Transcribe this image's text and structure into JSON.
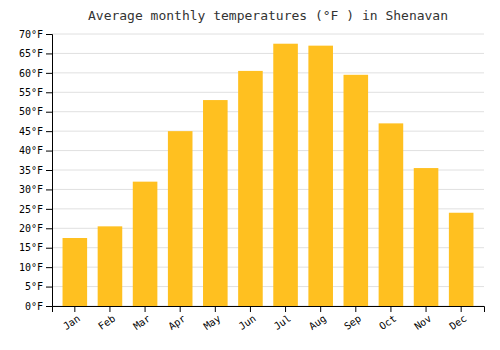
{
  "chart_data": {
    "type": "bar",
    "title": "Average monthly temperatures (°F ) in Shenavan",
    "categories": [
      "Jan",
      "Feb",
      "Mar",
      "Apr",
      "May",
      "Jun",
      "Jul",
      "Aug",
      "Sep",
      "Oct",
      "Nov",
      "Dec"
    ],
    "values": [
      17.5,
      20.5,
      32,
      45,
      53,
      60.5,
      67.5,
      67,
      59.5,
      47,
      35.5,
      24
    ],
    "color": "#FFC020",
    "ylim": [
      0,
      70
    ],
    "yticks": [
      {
        "value": 0,
        "label": "0°F"
      },
      {
        "value": 5,
        "label": "5°F"
      },
      {
        "value": 10,
        "label": "10°F"
      },
      {
        "value": 15,
        "label": "15°F"
      },
      {
        "value": 20,
        "label": "20°F"
      },
      {
        "value": 25,
        "label": "25°F"
      },
      {
        "value": 30,
        "label": "30°F"
      },
      {
        "value": 35,
        "label": "35°F"
      },
      {
        "value": 40,
        "label": "40°F"
      },
      {
        "value": 45,
        "label": "45°F"
      },
      {
        "value": 50,
        "label": "50°F"
      },
      {
        "value": 55,
        "label": "55°F"
      },
      {
        "value": 60,
        "label": "60°F"
      },
      {
        "value": 65,
        "label": "65°F"
      },
      {
        "value": 70,
        "label": "70°F"
      }
    ],
    "grid": true
  }
}
